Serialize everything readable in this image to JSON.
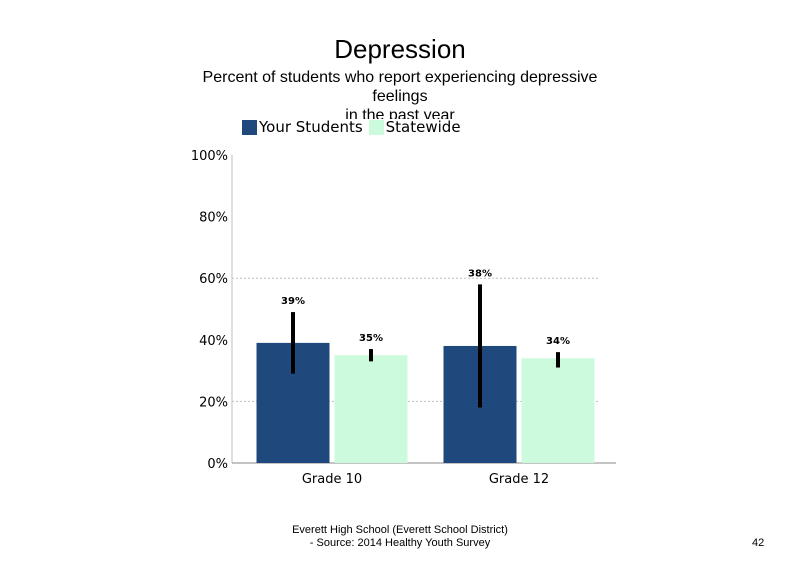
{
  "title": "Depression",
  "subtitle_lines": [
    "Percent of students who report experiencing depressive",
    "feelings",
    "in the past year"
  ],
  "footer_lines": [
    "Everett High School (Everett School District)",
    "- Source: 2014 Healthy Youth Survey"
  ],
  "page_number": "42",
  "colors": {
    "your_students": "#1f497d",
    "statewide": "#ccfadc",
    "error_bar": "#000000",
    "gridline": "#bfbfbf"
  },
  "chart_data": {
    "type": "bar",
    "categories": [
      "Grade 10",
      "Grade 12"
    ],
    "series": [
      {
        "name": "Your Students",
        "values": [
          39,
          38
        ],
        "labels": [
          "39%",
          "38%"
        ],
        "error_low": [
          29,
          18
        ],
        "error_high": [
          49,
          58
        ]
      },
      {
        "name": "Statewide",
        "values": [
          35,
          34
        ],
        "labels": [
          "35%",
          "34%"
        ],
        "error_low": [
          33,
          31
        ],
        "error_high": [
          37,
          36
        ]
      }
    ],
    "ylim": [
      0,
      100
    ],
    "yticks": [
      "0%",
      "20%",
      "40%",
      "60%",
      "80%",
      "100%"
    ],
    "grid": true,
    "legend_position": "top-left"
  }
}
